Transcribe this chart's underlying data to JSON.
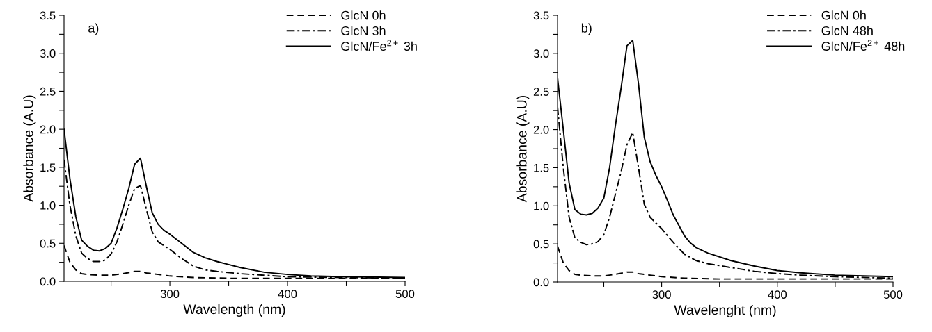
{
  "chart_data": [
    {
      "type": "line",
      "xlabel": "Wavelength (nm)",
      "ylabel": "Absorbance (A.U)",
      "annotations": [
        "a)"
      ],
      "legend": "top right",
      "grid": false,
      "xlim": [
        210,
        500
      ],
      "xticks": [
        {
          "value": 250,
          "label": null
        },
        300,
        {
          "value": 350,
          "label": null
        },
        400,
        {
          "value": 450,
          "label": null
        },
        500
      ],
      "ylim": [
        0,
        3.5
      ],
      "yticks": [
        "0.0",
        {
          "value": 0.25,
          "label": null
        },
        0.5,
        {
          "value": 0.75,
          "label": null
        },
        "1.0",
        {
          "value": 1.25,
          "label": null
        },
        1.5,
        {
          "value": 1.75,
          "label": null
        },
        "2.0",
        {
          "value": 2.25,
          "label": null
        },
        2.5,
        {
          "value": 2.75,
          "label": null
        },
        "3.0",
        {
          "value": 3.25,
          "label": null
        },
        3.5
      ],
      "series": [
        {
          "name": "GlcN 0h",
          "color": "#000000",
          "line_style": "dashed",
          "x": [
            210,
            215,
            220,
            225,
            230,
            240,
            250,
            260,
            270,
            275,
            280,
            290,
            300,
            320,
            350,
            400,
            500
          ],
          "values": [
            0.47,
            0.25,
            0.15,
            0.1,
            0.09,
            0.08,
            0.08,
            0.1,
            0.13,
            0.13,
            0.11,
            0.09,
            0.07,
            0.05,
            0.04,
            0.04,
            0.04
          ]
        },
        {
          "name": "GlcN 3h",
          "color": "#000000",
          "line_style": "dashdot",
          "x": [
            210,
            215,
            220,
            225,
            230,
            235,
            240,
            245,
            250,
            255,
            260,
            265,
            270,
            275,
            280,
            285,
            290,
            300,
            310,
            320,
            330,
            340,
            360,
            380,
            400,
            450,
            500
          ],
          "values": [
            1.6,
            1.0,
            0.6,
            0.37,
            0.3,
            0.26,
            0.26,
            0.28,
            0.36,
            0.52,
            0.75,
            1.0,
            1.22,
            1.26,
            0.95,
            0.65,
            0.52,
            0.42,
            0.3,
            0.2,
            0.15,
            0.13,
            0.1,
            0.08,
            0.06,
            0.05,
            0.04
          ]
        },
        {
          "name": "GlcN/Fe$^{2+}$ 3h",
          "color": "#000000",
          "line_style": "solid",
          "x": [
            210,
            215,
            220,
            225,
            230,
            235,
            240,
            245,
            250,
            255,
            260,
            265,
            270,
            275,
            280,
            285,
            290,
            295,
            300,
            310,
            320,
            330,
            340,
            350,
            360,
            380,
            400,
            420,
            450,
            500
          ],
          "values": [
            2.0,
            1.35,
            0.85,
            0.54,
            0.46,
            0.41,
            0.4,
            0.43,
            0.5,
            0.7,
            0.95,
            1.22,
            1.54,
            1.62,
            1.25,
            0.9,
            0.75,
            0.67,
            0.62,
            0.5,
            0.38,
            0.31,
            0.26,
            0.22,
            0.18,
            0.12,
            0.09,
            0.07,
            0.06,
            0.05
          ]
        }
      ]
    },
    {
      "type": "line",
      "xlabel": "Wavelenght (nm)",
      "ylabel": "Absorbance (A.U)",
      "annotations": [
        "b)"
      ],
      "legend": "top right",
      "grid": false,
      "xlim": [
        210,
        500
      ],
      "xticks": [
        {
          "value": 250,
          "label": null
        },
        300,
        {
          "value": 350,
          "label": null
        },
        400,
        {
          "value": 450,
          "label": null
        },
        500
      ],
      "ylim": [
        0,
        3.5
      ],
      "yticks": [
        "0.0",
        {
          "value": 0.25,
          "label": null
        },
        0.5,
        {
          "value": 0.75,
          "label": null
        },
        "1.0",
        {
          "value": 1.25,
          "label": null
        },
        1.5,
        {
          "value": 1.75,
          "label": null
        },
        "2.0",
        {
          "value": 2.25,
          "label": null
        },
        2.5,
        {
          "value": 2.75,
          "label": null
        },
        "3.0",
        {
          "value": 3.25,
          "label": null
        },
        3.5
      ],
      "series": [
        {
          "name": "GlcN 0h",
          "color": "#000000",
          "line_style": "dashed",
          "x": [
            210,
            215,
            220,
            225,
            230,
            240,
            250,
            260,
            270,
            275,
            280,
            290,
            300,
            320,
            350,
            400,
            500
          ],
          "values": [
            0.47,
            0.25,
            0.15,
            0.1,
            0.09,
            0.08,
            0.08,
            0.1,
            0.13,
            0.13,
            0.11,
            0.09,
            0.07,
            0.05,
            0.04,
            0.04,
            0.04
          ]
        },
        {
          "name": "GlcN 48h",
          "color": "#000000",
          "line_style": "dashdot",
          "x": [
            210,
            215,
            220,
            225,
            230,
            235,
            240,
            245,
            250,
            255,
            260,
            265,
            270,
            275,
            280,
            285,
            290,
            300,
            310,
            320,
            330,
            340,
            360,
            380,
            400,
            420,
            450,
            500
          ],
          "values": [
            2.3,
            1.5,
            0.85,
            0.58,
            0.52,
            0.49,
            0.5,
            0.53,
            0.62,
            0.85,
            1.15,
            1.45,
            1.8,
            1.96,
            1.5,
            1.02,
            0.85,
            0.7,
            0.52,
            0.36,
            0.28,
            0.24,
            0.19,
            0.14,
            0.11,
            0.09,
            0.07,
            0.05
          ]
        },
        {
          "name": "GlcN/Fe$^{2+}$ 48h",
          "color": "#000000",
          "line_style": "solid",
          "x": [
            210,
            215,
            220,
            225,
            230,
            235,
            240,
            245,
            250,
            255,
            260,
            265,
            270,
            275,
            280,
            285,
            290,
            295,
            300,
            305,
            310,
            320,
            325,
            330,
            340,
            360,
            380,
            400,
            420,
            450,
            500
          ],
          "values": [
            2.68,
            2.0,
            1.3,
            0.95,
            0.89,
            0.88,
            0.9,
            0.97,
            1.1,
            1.5,
            2.05,
            2.55,
            3.1,
            3.17,
            2.6,
            1.9,
            1.58,
            1.4,
            1.25,
            1.07,
            0.88,
            0.6,
            0.51,
            0.45,
            0.38,
            0.28,
            0.21,
            0.15,
            0.12,
            0.09,
            0.07
          ]
        }
      ]
    }
  ]
}
